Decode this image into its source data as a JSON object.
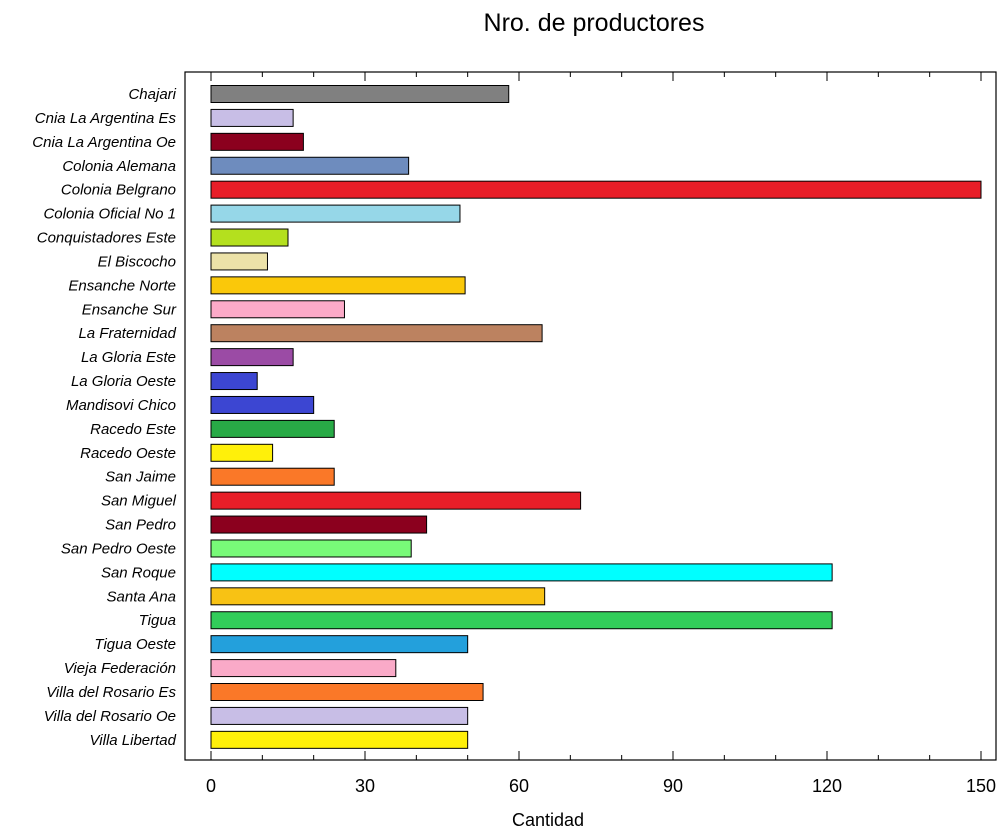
{
  "chart_data": {
    "type": "bar",
    "orientation": "horizontal",
    "title": "Nro. de productores",
    "xlabel": "Cantidad",
    "ylabel": "",
    "xlim": [
      0,
      150
    ],
    "x_ticks": [
      "0",
      "30",
      "60",
      "90",
      "120",
      "150"
    ],
    "x_tick_values": [
      0,
      30,
      60,
      90,
      120,
      150
    ],
    "grid": false,
    "categories": [
      "Chajari",
      "Cnia La Argentina Es",
      "Cnia La Argentina Oe",
      "Colonia Alemana",
      "Colonia Belgrano",
      "Colonia Oficial No 1",
      "Conquistadores Este",
      "El Biscocho",
      "Ensanche Norte",
      "Ensanche Sur",
      "La Fraternidad",
      "La Gloria Este",
      "La Gloria Oeste",
      "Mandisovi Chico",
      "Racedo Este",
      "Racedo Oeste",
      "San Jaime",
      "San Miguel",
      "San Pedro",
      "San Pedro Oeste",
      "San Roque",
      "Santa Ana",
      "Tigua",
      "Tigua Oeste",
      "Vieja Federación",
      "Villa del Rosario Es",
      "Villa del Rosario Oe",
      "Villa Libertad"
    ],
    "values": [
      58,
      16,
      18,
      38.5,
      150,
      48.5,
      15,
      11,
      49.5,
      26,
      64.5,
      16,
      9,
      20,
      24,
      12,
      24,
      72,
      42,
      39,
      121,
      65,
      121,
      50,
      36,
      53,
      50,
      50
    ],
    "colors": [
      "#808080",
      "#c8bee6",
      "#8b001e",
      "#6e8cbe",
      "#e81e28",
      "#96d7e8",
      "#b4e01e",
      "#ece2a8",
      "#fac80a",
      "#fcaac8",
      "#bc8260",
      "#9b4ba5",
      "#3c46d2",
      "#3c46d2",
      "#28aa46",
      "#fff00a",
      "#fa7828",
      "#e81e28",
      "#8b001e",
      "#78fa78",
      "#00ffff",
      "#f8c214",
      "#32cd5a",
      "#23a0dc",
      "#faaac8",
      "#fa7828",
      "#c8bee6",
      "#fff00a"
    ]
  }
}
